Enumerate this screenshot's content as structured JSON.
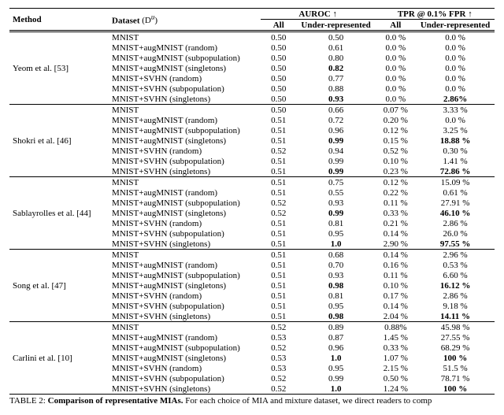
{
  "header": {
    "method": "Method",
    "dataset_html": "Dataset",
    "dataset_paren": "(D",
    "dataset_super": "u",
    "dataset_close": ")",
    "auroc": "AUROC ↑",
    "tpr": "TPR @ 0.1% FPR ↑",
    "all": "All",
    "ur": "Under-represented"
  },
  "caption_lead": "TABLE 2:",
  "caption_bold": " Comparison of representative MIAs.",
  "caption_rest": " For each choice of MIA and mixture dataset, we direct readers to comp",
  "methods": [
    {
      "name": "Yeom et al. [53]",
      "rows": [
        {
          "dataset": "MNIST",
          "auroc_all": "0.50",
          "auroc_ur": "0.50",
          "tpr_all": "0.0 %",
          "tpr_ur": "0.0 %"
        },
        {
          "dataset": "MNIST+augMNIST (random)",
          "auroc_all": "0.50",
          "auroc_ur": "0.61",
          "tpr_all": "0.0 %",
          "tpr_ur": "0.0 %"
        },
        {
          "dataset": "MNIST+augMNIST (subpopulation)",
          "auroc_all": "0.50",
          "auroc_ur": "0.80",
          "tpr_all": "0.0 %",
          "tpr_ur": "0.0 %"
        },
        {
          "dataset": "MNIST+augMNIST (singletons)",
          "auroc_all": "0.50",
          "auroc_ur": "0.82",
          "auroc_ur_bold": true,
          "tpr_all": "0.0 %",
          "tpr_ur": "0.0 %"
        },
        {
          "dataset": "MNIST+SVHN (random)",
          "auroc_all": "0.50",
          "auroc_ur": "0.77",
          "tpr_all": "0.0 %",
          "tpr_ur": "0.0 %"
        },
        {
          "dataset": "MNIST+SVHN (subpopulation)",
          "auroc_all": "0.50",
          "auroc_ur": "0.88",
          "tpr_all": "0.0 %",
          "tpr_ur": "0.0 %"
        },
        {
          "dataset": "MNIST+SVHN (singletons)",
          "auroc_all": "0.50",
          "auroc_ur": "0.93",
          "auroc_ur_bold": true,
          "tpr_all": "0.0 %",
          "tpr_ur": "2.86%",
          "tpr_ur_bold": true
        }
      ]
    },
    {
      "name": "Shokri et al. [46]",
      "rows": [
        {
          "dataset": "MNIST",
          "auroc_all": "0.50",
          "auroc_ur": "0.66",
          "tpr_all": "0.07 %",
          "tpr_ur": "3.33 %"
        },
        {
          "dataset": "MNIST+augMNIST (random)",
          "auroc_all": "0.51",
          "auroc_ur": "0.72",
          "tpr_all": "0.20 %",
          "tpr_ur": "0.0 %"
        },
        {
          "dataset": "MNIST+augMNIST (subpopulation)",
          "auroc_all": "0.51",
          "auroc_ur": "0.96",
          "tpr_all": "0.12 %",
          "tpr_ur": "3.25 %"
        },
        {
          "dataset": "MNIST+augMNIST (singletons)",
          "auroc_all": "0.51",
          "auroc_ur": "0.99",
          "auroc_ur_bold": true,
          "tpr_all": "0.15 %",
          "tpr_ur": "18.88 %",
          "tpr_ur_bold": true
        },
        {
          "dataset": "MNIST+SVHN (random)",
          "auroc_all": "0.52",
          "auroc_ur": "0.94",
          "tpr_all": "0.52 %",
          "tpr_ur": "0.30 %"
        },
        {
          "dataset": "MNIST+SVHN (subpopulation)",
          "auroc_all": "0.51",
          "auroc_ur": "0.99",
          "tpr_all": "0.10 %",
          "tpr_ur": "1.41 %"
        },
        {
          "dataset": "MNIST+SVHN (singletons)",
          "auroc_all": "0.51",
          "auroc_ur": "0.99",
          "auroc_ur_bold": true,
          "tpr_all": "0.23 %",
          "tpr_ur": "72.86 %",
          "tpr_ur_bold": true
        }
      ]
    },
    {
      "name": "Sablayrolles et al. [44]",
      "rows": [
        {
          "dataset": "MNIST",
          "auroc_all": "0.51",
          "auroc_ur": "0.75",
          "tpr_all": "0.12 %",
          "tpr_ur": "15.09 %"
        },
        {
          "dataset": "MNIST+augMNIST (random)",
          "auroc_all": "0.51",
          "auroc_ur": "0.55",
          "tpr_all": "0.22 %",
          "tpr_ur": "0.61 %"
        },
        {
          "dataset": "MNIST+augMNIST (subpopulation)",
          "auroc_all": "0.52",
          "auroc_ur": "0.93",
          "tpr_all": "0.11 %",
          "tpr_ur": "27.91 %"
        },
        {
          "dataset": "MNIST+augMNIST (singletons)",
          "auroc_all": "0.52",
          "auroc_ur": "0.99",
          "auroc_ur_bold": true,
          "tpr_all": "0.33 %",
          "tpr_ur": "46.10 %",
          "tpr_ur_bold": true
        },
        {
          "dataset": "MNIST+SVHN (random)",
          "auroc_all": "0.51",
          "auroc_ur": "0.81",
          "tpr_all": "0.21 %",
          "tpr_ur": "2.86 %"
        },
        {
          "dataset": "MNIST+SVHN (subpopulation)",
          "auroc_all": "0.51",
          "auroc_ur": "0.95",
          "tpr_all": "0.14 %",
          "tpr_ur": "26.0 %"
        },
        {
          "dataset": "MNIST+SVHN (singletons)",
          "auroc_all": "0.51",
          "auroc_ur": "1.0",
          "auroc_ur_bold": true,
          "tpr_all": "2.90 %",
          "tpr_ur": "97.55 %",
          "tpr_ur_bold": true
        }
      ]
    },
    {
      "name": "Song et al. [47]",
      "rows": [
        {
          "dataset": "MNIST",
          "auroc_all": "0.51",
          "auroc_ur": "0.68",
          "tpr_all": "0.14 %",
          "tpr_ur": "2.96 %"
        },
        {
          "dataset": "MNIST+augMNIST (random)",
          "auroc_all": "0.51",
          "auroc_ur": "0.70",
          "tpr_all": "0.16 %",
          "tpr_ur": "0.53 %"
        },
        {
          "dataset": "MNIST+augMNIST (subpopulation)",
          "auroc_all": "0.51",
          "auroc_ur": "0.93",
          "tpr_all": "0.11 %",
          "tpr_ur": "6.60 %"
        },
        {
          "dataset": "MNIST+augMNIST (singletons)",
          "auroc_all": "0.51",
          "auroc_ur": "0.98",
          "auroc_ur_bold": true,
          "tpr_all": "0.10 %",
          "tpr_ur": "16.12 %",
          "tpr_ur_bold": true
        },
        {
          "dataset": "MNIST+SVHN (random)",
          "auroc_all": "0.51",
          "auroc_ur": "0.81",
          "tpr_all": "0.17 %",
          "tpr_ur": "2.86 %"
        },
        {
          "dataset": "MNIST+SVHN (subpopulation)",
          "auroc_all": "0.51",
          "auroc_ur": "0.95",
          "tpr_all": "0.14 %",
          "tpr_ur": "9.18 %"
        },
        {
          "dataset": "MNIST+SVHN (singletons)",
          "auroc_all": "0.51",
          "auroc_ur": "0.98",
          "auroc_ur_bold": true,
          "tpr_all": "2.04 %",
          "tpr_ur": "14.11 %",
          "tpr_ur_bold": true
        }
      ]
    },
    {
      "name": "Carlini et al. [10]",
      "rows": [
        {
          "dataset": "MNIST",
          "auroc_all": "0.52",
          "auroc_ur": "0.89",
          "tpr_all": "0.88%",
          "tpr_ur": "45.98 %"
        },
        {
          "dataset": "MNIST+augMNIST (random)",
          "auroc_all": "0.53",
          "auroc_ur": "0.87",
          "tpr_all": "1.45 %",
          "tpr_ur": "27.55 %"
        },
        {
          "dataset": "MNIST+augMNIST (subpopulation)",
          "auroc_all": "0.52",
          "auroc_ur": "0.96",
          "tpr_all": "0.33 %",
          "tpr_ur": "68.29 %"
        },
        {
          "dataset": "MNIST+augMNIST (singletons)",
          "auroc_all": "0.53",
          "auroc_ur": "1.0",
          "auroc_ur_bold": true,
          "tpr_all": "1.07 %",
          "tpr_ur": "100 %",
          "tpr_ur_bold": true
        },
        {
          "dataset": "MNIST+SVHN (random)",
          "auroc_all": "0.53",
          "auroc_ur": "0.95",
          "tpr_all": "2.15 %",
          "tpr_ur": "51.5 %"
        },
        {
          "dataset": "MNIST+SVHN (subpopulation)",
          "auroc_all": "0.52",
          "auroc_ur": "0.99",
          "tpr_all": "0.50 %",
          "tpr_ur": "78.71 %"
        },
        {
          "dataset": "MNIST+SVHN (singletons)",
          "auroc_all": "0.52",
          "auroc_ur": "1.0",
          "auroc_ur_bold": true,
          "tpr_all": "1.24 %",
          "tpr_ur": "100 %",
          "tpr_ur_bold": true
        }
      ]
    }
  ]
}
